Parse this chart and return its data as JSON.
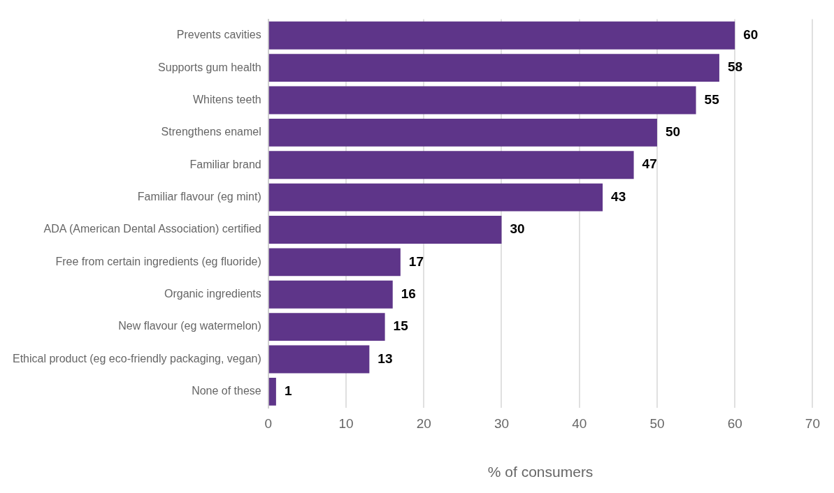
{
  "chart_data": {
    "type": "bar",
    "orientation": "horizontal",
    "xlabel": "% of consumers",
    "categories": [
      "Prevents cavities",
      "Supports gum health",
      "Whitens teeth",
      "Strengthens enamel",
      "Familiar brand",
      "Familiar flavour (eg mint)",
      "ADA (American Dental Association) certified",
      "Free from certain ingredients (eg fluoride)",
      "Organic ingredients",
      "New flavour (eg watermelon)",
      "Ethical product (eg eco-friendly packaging, vegan)",
      "None of these"
    ],
    "values": [
      60,
      58,
      55,
      50,
      47,
      43,
      30,
      17,
      16,
      15,
      13,
      1
    ],
    "color": "#5e3589",
    "xlim": [
      0,
      70
    ],
    "xticks": [
      0,
      10,
      20,
      30,
      40,
      50,
      60,
      70
    ],
    "grid": "x",
    "data_labels": true,
    "legend": false
  }
}
